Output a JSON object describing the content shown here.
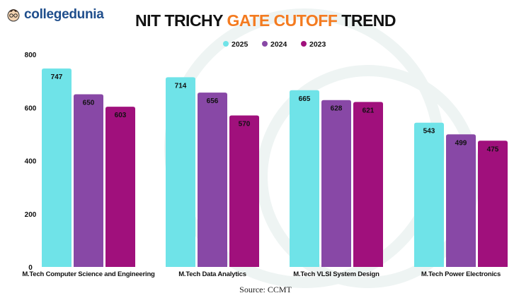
{
  "logo": {
    "text": "collegedunia"
  },
  "title": {
    "part1": "NIT TRICHY ",
    "highlight": "GATE CUTOFF",
    "part2": " TREND"
  },
  "source": "Source: CCMT",
  "chart_data": {
    "type": "bar",
    "title": "NIT TRICHY GATE CUTOFF TREND",
    "categories": [
      "M.Tech Computer Science and Engineering",
      "M.Tech Data Analytics",
      "M.Tech VLSI System Design",
      "M.Tech Power Electronics"
    ],
    "series": [
      {
        "name": "2025",
        "color": "#6fe3e8",
        "values": [
          747,
          714,
          665,
          543
        ]
      },
      {
        "name": "2024",
        "color": "#8848a6",
        "values": [
          650,
          656,
          628,
          499
        ]
      },
      {
        "name": "2023",
        "color": "#a0107c",
        "values": [
          603,
          570,
          621,
          475
        ]
      }
    ],
    "yticks": [
      "0",
      "200",
      "400",
      "600",
      "800"
    ],
    "ylim": [
      0,
      800
    ],
    "grid": false,
    "legend": "top-center",
    "data_labels": true
  }
}
